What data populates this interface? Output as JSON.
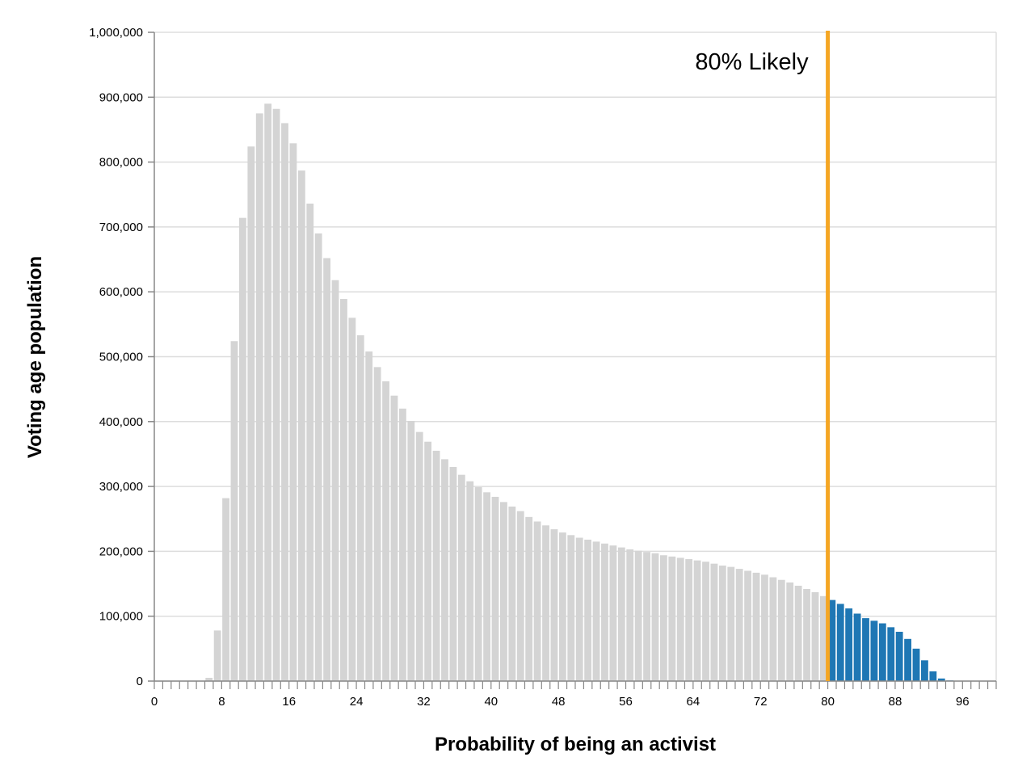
{
  "chart_data": {
    "type": "bar",
    "xlabel": "Probability of being an activist",
    "ylabel": "Voting age population",
    "xlim": [
      0,
      100
    ],
    "ylim": [
      0,
      1000000
    ],
    "grid": true,
    "bin_width": 1,
    "x_ticks": [
      0,
      8,
      16,
      24,
      32,
      40,
      48,
      56,
      64,
      72,
      80,
      88,
      96
    ],
    "x_tick_labels": [
      "0",
      "8",
      "16",
      "24",
      "32",
      "40",
      "48",
      "56",
      "64",
      "72",
      "80",
      "88",
      "96"
    ],
    "y_ticks": [
      0,
      100000,
      200000,
      300000,
      400000,
      500000,
      600000,
      700000,
      800000,
      900000,
      1000000
    ],
    "y_tick_labels": [
      "0",
      "100,000",
      "200,000",
      "300,000",
      "400,000",
      "500,000",
      "600,000",
      "700,000",
      "800,000",
      "900,000",
      "1,000,000"
    ],
    "threshold": {
      "x": 80,
      "label": "80% Likely",
      "color": "#f5a623"
    },
    "colors": {
      "below_threshold": "#d4d4d4",
      "above_threshold": "#1f77b4",
      "grid": "#dddddd",
      "axis": "#888888"
    },
    "x": [
      0,
      1,
      2,
      3,
      4,
      5,
      6,
      7,
      8,
      9,
      10,
      11,
      12,
      13,
      14,
      15,
      16,
      17,
      18,
      19,
      20,
      21,
      22,
      23,
      24,
      25,
      26,
      27,
      28,
      29,
      30,
      31,
      32,
      33,
      34,
      35,
      36,
      37,
      38,
      39,
      40,
      41,
      42,
      43,
      44,
      45,
      46,
      47,
      48,
      49,
      50,
      51,
      52,
      53,
      54,
      55,
      56,
      57,
      58,
      59,
      60,
      61,
      62,
      63,
      64,
      65,
      66,
      67,
      68,
      69,
      70,
      71,
      72,
      73,
      74,
      75,
      76,
      77,
      78,
      79,
      80,
      81,
      82,
      83,
      84,
      85,
      86,
      87,
      88,
      89,
      90,
      91,
      92,
      93,
      94,
      95,
      96,
      97,
      98,
      99
    ],
    "values": [
      0,
      0,
      0,
      0,
      0,
      0,
      5000,
      78000,
      282000,
      524000,
      714000,
      824000,
      875000,
      890000,
      882000,
      860000,
      829000,
      787000,
      736000,
      690000,
      652000,
      618000,
      589000,
      560000,
      533000,
      508000,
      484000,
      462000,
      440000,
      420000,
      401000,
      384000,
      369000,
      355000,
      342000,
      330000,
      318000,
      308000,
      299000,
      291000,
      284000,
      276000,
      269000,
      262000,
      253000,
      246000,
      240000,
      234000,
      229000,
      225000,
      221000,
      218000,
      215000,
      212000,
      209000,
      206000,
      203000,
      201000,
      199000,
      197000,
      194000,
      192000,
      190000,
      188000,
      186000,
      184000,
      181000,
      178000,
      176000,
      173000,
      170000,
      167000,
      164000,
      160000,
      156000,
      152000,
      147000,
      142000,
      137000,
      131000,
      125000,
      119000,
      112000,
      104000,
      97000,
      93000,
      89000,
      83000,
      76000,
      65000,
      50000,
      32000,
      15000,
      4000,
      1000,
      0,
      0,
      0,
      0,
      0
    ]
  }
}
